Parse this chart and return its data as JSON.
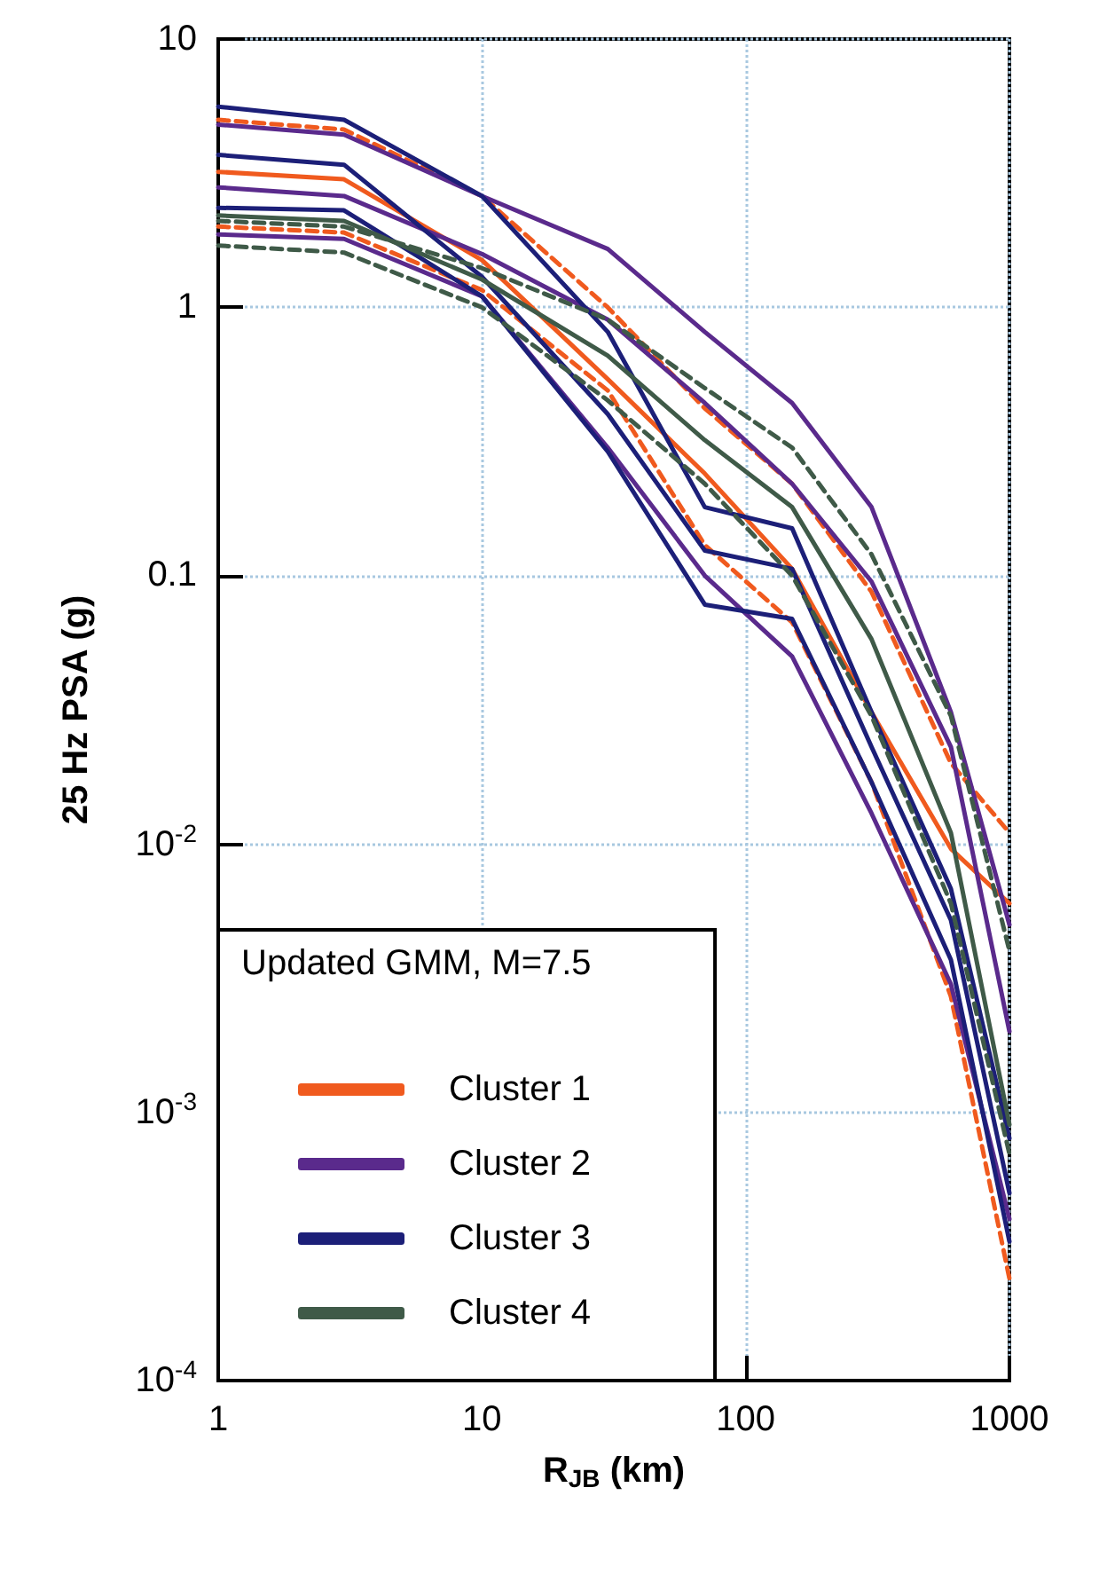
{
  "chart_data": {
    "type": "line",
    "xlabel": "R$_{JB}$ (km)",
    "ylabel": "25 Hz PSA (g)",
    "legend_title": "Updated GMM, M=7.5",
    "log": "xy",
    "grid": true,
    "legend": "bottom left",
    "marker": "none",
    "xlim": [
      1,
      1000
    ],
    "xticks": [
      1,
      10,
      100,
      1000
    ],
    "ylim": [
      0.0001,
      10
    ],
    "yticks": [
      {
        "value": 0.0001,
        "label": "10$^{-4}$"
      },
      {
        "value": 0.001,
        "label": "10$^{-3}$"
      },
      {
        "value": 0.01,
        "label": "10$^{-2}$"
      },
      0.1,
      1,
      10
    ],
    "x": [
      1,
      3,
      10,
      30,
      70,
      150,
      300,
      600,
      1000
    ],
    "series": [
      {
        "name": "Cluster 1",
        "color": "#f05a1e",
        "values": [
          3.2,
          3.0,
          1.5,
          0.54,
          0.24,
          0.106,
          0.031,
          0.0096,
          0.006
        ]
      },
      {
        "color": "#f05a1e",
        "line_style": "dashed",
        "values": [
          5.0,
          4.6,
          2.6,
          1.0,
          0.42,
          0.22,
          0.087,
          0.02,
          0.011
        ]
      },
      {
        "color": "#f05a1e",
        "line_style": "dashed",
        "values": [
          2.0,
          1.9,
          1.16,
          0.49,
          0.13,
          0.067,
          0.017,
          0.0027,
          0.00024
        ]
      },
      {
        "name": "Cluster 2",
        "color": "#5a2a8c",
        "values": [
          2.8,
          2.6,
          1.58,
          0.9,
          0.44,
          0.22,
          0.095,
          0.023,
          0.002
        ]
      },
      {
        "color": "#5a2a8c",
        "values": [
          4.8,
          4.4,
          2.6,
          1.65,
          0.81,
          0.44,
          0.18,
          0.031,
          0.005
        ]
      },
      {
        "color": "#5a2a8c",
        "values": [
          1.87,
          1.8,
          1.1,
          0.3,
          0.1,
          0.05,
          0.013,
          0.003,
          0.0004
        ]
      },
      {
        "name": "Cluster 3",
        "color": "#1c1f78",
        "values": [
          3.7,
          3.4,
          1.3,
          0.4,
          0.124,
          0.106,
          0.023,
          0.0052,
          0.0005
        ]
      },
      {
        "color": "#1c1f78",
        "values": [
          5.6,
          5.0,
          2.6,
          0.81,
          0.18,
          0.15,
          0.031,
          0.0068,
          0.0008
        ]
      },
      {
        "color": "#1c1f78",
        "values": [
          2.35,
          2.3,
          1.1,
          0.29,
          0.078,
          0.069,
          0.017,
          0.0037,
          0.00033
        ]
      },
      {
        "name": "Cluster 4",
        "color": "#3f5a48",
        "values": [
          2.2,
          2.1,
          1.27,
          0.66,
          0.32,
          0.18,
          0.058,
          0.011,
          0.0009
        ]
      },
      {
        "color": "#3f5a48",
        "line_style": "dashed",
        "values": [
          1.7,
          1.6,
          1.0,
          0.45,
          0.22,
          0.1,
          0.03,
          0.006,
          0.0007
        ]
      },
      {
        "color": "#3f5a48",
        "line_style": "dashed",
        "values": [
          2.1,
          2.0,
          1.4,
          0.9,
          0.5,
          0.3,
          0.12,
          0.03,
          0.004
        ]
      }
    ]
  }
}
